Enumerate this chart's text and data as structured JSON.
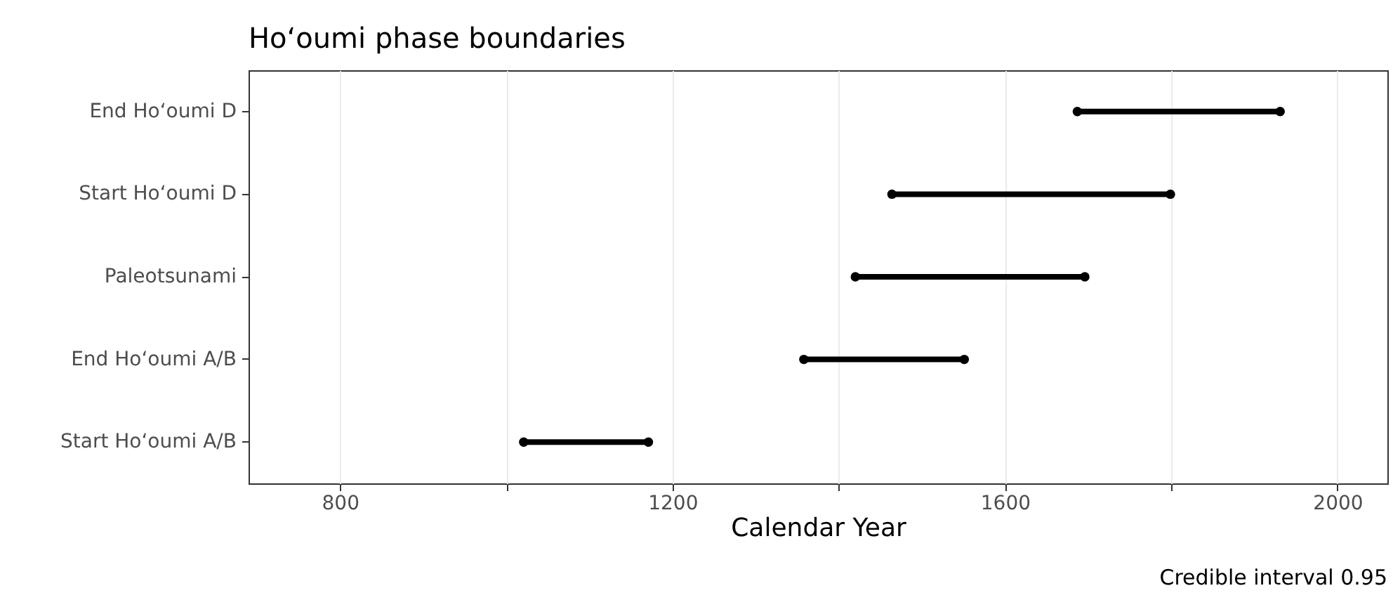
{
  "chart_data": {
    "type": "bar",
    "orientation": "horizontal",
    "title": "Ho‘oumi phase boundaries",
    "xlabel": "Calendar Year",
    "categories": [
      "End Ho‘oumi D",
      "Start Ho‘oumi D",
      "Paleotsunami",
      "End Ho‘oumi A/B",
      "Start Ho‘oumi A/B"
    ],
    "series": [
      {
        "color": "#000000",
        "base": [
          1687,
          1464,
          1420,
          1358,
          1021
        ],
        "values": [
          244,
          335,
          276,
          193,
          150
        ]
      },
      {
        "type": "scatter",
        "color": "#000000",
        "values": [
          1687,
          1464,
          1420,
          1358,
          1021
        ]
      },
      {
        "type": "scatter",
        "color": "#000000",
        "values": [
          1931,
          1799,
          1696,
          1551,
          1171
        ]
      }
    ],
    "marker": "circle",
    "grid": "x",
    "xlim": [
      690,
      2060
    ],
    "xticks": [
      800,
      {
        "value": 1000,
        "label": null
      },
      1200,
      {
        "value": 1400,
        "label": null
      },
      1600,
      {
        "value": 1800,
        "label": null
      },
      2000
    ],
    "annotations": [
      "Credible interval 0.95"
    ]
  }
}
